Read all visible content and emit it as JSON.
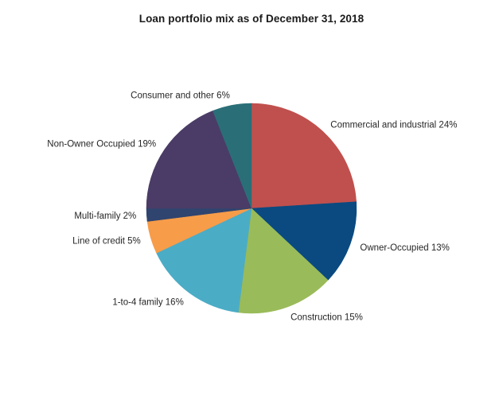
{
  "colors": {
    "background": "#ffffff",
    "title_text": "#1a1a1a",
    "label_text": "#262626"
  },
  "chart_data": {
    "type": "pie",
    "title": "Loan portfolio mix as of December 31, 2018",
    "legend": "none",
    "labels_position": "outside",
    "start_angle": "12-oclock",
    "direction": "clockwise",
    "segments": [
      {
        "label": "Commercial and industrial",
        "value_pct": 24,
        "color": "#c0504d"
      },
      {
        "label": "Owner-Occupied",
        "value_pct": 13,
        "color": "#0a4a80"
      },
      {
        "label": "Construction",
        "value_pct": 15,
        "color": "#9abb59"
      },
      {
        "label": "1-to-4 family",
        "value_pct": 16,
        "color": "#4bacc6"
      },
      {
        "label": "Line of credit",
        "value_pct": 5,
        "color": "#f79c49"
      },
      {
        "label": "Multi-family",
        "value_pct": 2,
        "color": "#2f446e"
      },
      {
        "label": "Non-Owner Occupied",
        "value_pct": 19,
        "color": "#4a3c66"
      },
      {
        "label": "Consumer and other",
        "value_pct": 6,
        "color": "#2a6f78"
      }
    ],
    "label_format": "{label} {value}%"
  }
}
